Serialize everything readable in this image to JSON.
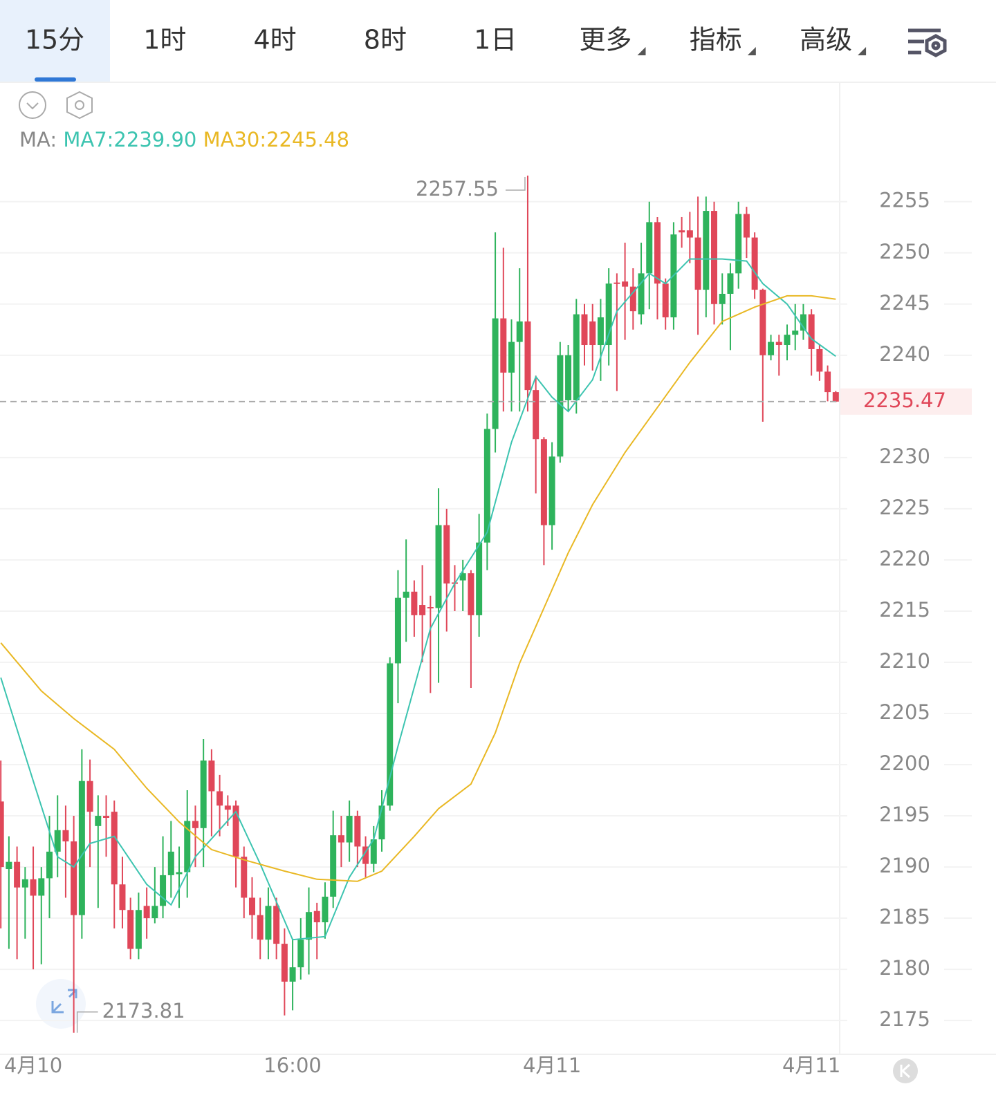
{
  "tabs": [
    "15分",
    "1时",
    "4时",
    "8时",
    "1日",
    "更多",
    "指标",
    "高级"
  ],
  "chart_data": {
    "type": "candlestick",
    "ma_prefix": "MA:",
    "up_color": "#2eb35c",
    "down_color": "#e04759",
    "xlim": [
      -0.1,
      103.4
    ],
    "ylim": [
      2171.7,
      2266.6
    ],
    "yticks": [
      2175,
      2180,
      2185,
      2190,
      2195,
      2200,
      2205,
      2210,
      2215,
      2220,
      2225,
      2230,
      2240,
      2245,
      2250,
      2255
    ],
    "xticks": [
      {
        "value": 4,
        "label": "4月10"
      },
      {
        "value": 36,
        "label": "16:00"
      },
      {
        "value": 68,
        "label": "4月11"
      },
      {
        "value": 100,
        "label": "4月11"
      }
    ],
    "high_label": "2257.55",
    "low_label": "2173.81",
    "last_price_label": "2235.47",
    "open": [
      2196.4,
      2189.8,
      2190.5,
      2188,
      2188.8,
      2187.2,
      2188.9,
      2191.5,
      2193.6,
      2192.5,
      2185.3,
      2198.4,
      2194,
      2195,
      2195.4,
      2188.3,
      2185.8,
      2182,
      2186.2,
      2185,
      2186.2,
      2189.2,
      2189.3,
      2189.5,
      2194.5,
      2193.8,
      2200.4,
      2197.4,
      2196,
      2196,
      2191,
      2187,
      2185.3,
      2182.9,
      2186.2,
      2182.5,
      2178.8,
      2180.2,
      2182.9,
      2185.7,
      2184.6,
      2187.1,
      2193.1,
      2192.4,
      2195,
      2192,
      2190.3,
      2192.7,
      2196,
      2209.9,
      2216.3,
      2216.9,
      2215.6,
      2215.4,
      2215.3,
      2223.4,
      2217.8,
      2218,
      2218.7,
      2214.6,
      2221.7,
      2232.8,
      2243.6,
      2238.3,
      2241.3,
      2243.3,
      2236.6,
      2231.8,
      2223.4,
      2230.1,
      2235.6,
      2235.6,
      2244,
      2243.3,
      2241,
      2241,
      2247.1,
      2247.2,
      2246.7,
      2244,
      2248,
      2253,
      2247,
      2243.7,
      2252.2,
      2252.2,
      2251.5,
      2246.4,
      2254.1,
      2245,
      2246,
      2248,
      2253.8,
      2251.5,
      2246.4,
      2240,
      2241.3,
      2241,
      2242,
      2242.4,
      2244,
      2240.6,
      2238.4,
      2236.4
    ],
    "high": [
      2200.4,
      2193,
      2192,
      2190,
      2192,
      2190,
      2195,
      2197,
      2196,
      2195,
      2201.5,
      2200.5,
      2197,
      2197,
      2196.5,
      2191,
      2187,
      2187.5,
      2188,
      2190,
      2193,
      2194.5,
      2192,
      2197.5,
      2196,
      2202.5,
      2201.5,
      2199,
      2197,
      2196.5,
      2192,
      2189,
      2187,
      2188,
      2187,
      2184,
      2183,
      2185,
      2188,
      2186.5,
      2188.5,
      2195.5,
      2195,
      2196.5,
      2195.5,
      2193,
      2194,
      2197.5,
      2210.5,
      2219,
      2222,
      2218,
      2219.5,
      2216.5,
      2227,
      2225,
      2219.5,
      2220,
      2219,
      2224.5,
      2234.3,
      2252,
      2250.5,
      2243.5,
      2248.5,
      2257.55,
      2238,
      2232,
      2231.5,
      2241.3,
      2241,
      2245.5,
      2245,
      2245,
      2245.5,
      2248.5,
      2248,
      2251,
      2248.5,
      2251,
      2255,
      2253.5,
      2247.5,
      2253,
      2253.5,
      2254,
      2255.5,
      2255.5,
      2255,
      2248,
      2249,
      2255,
      2254.5,
      2252,
      2246.5,
      2242,
      2242,
      2243,
      2245,
      2245,
      2244.5,
      2241,
      2239,
      2236.5
    ],
    "low": [
      2184,
      2182,
      2181,
      2183,
      2180,
      2180.5,
      2185,
      2189,
      2187,
      2173.81,
      2183,
      2190,
      2186,
      2191,
      2184,
      2184,
      2181,
      2181,
      2183,
      2184.5,
      2185,
      2187,
      2186,
      2187,
      2190,
      2190,
      2193,
      2193,
      2194,
      2188,
      2185,
      2183,
      2181,
      2181,
      2181,
      2175.5,
      2176,
      2179,
      2179.5,
      2181,
      2183,
      2186,
      2190,
      2190.5,
      2190,
      2189,
      2189.5,
      2191.5,
      2195.5,
      2206,
      2212,
      2212.5,
      2210,
      2207,
      2208,
      2213,
      2215,
      2215,
      2207.5,
      2212.5,
      2219,
      2230.5,
      2234.5,
      2234.5,
      2234.5,
      2234.5,
      2226.5,
      2219.5,
      2221,
      2229.5,
      2234.5,
      2234.3,
      2239,
      2238.5,
      2237.5,
      2239,
      2236.5,
      2241.5,
      2242.5,
      2243,
      2244.5,
      2243.5,
      2242.5,
      2242.5,
      2250.5,
      2249,
      2242,
      2243.7,
      2243,
      2243,
      2240.5,
      2246.5,
      2249.5,
      2245.5,
      2233.5,
      2239.5,
      2238,
      2239.5,
      2240.5,
      2241.5,
      2238,
      2237.5,
      2235.5,
      2235.4
    ],
    "close": [
      2190,
      2190.5,
      2188,
      2188.8,
      2187.2,
      2188.9,
      2191.5,
      2193.6,
      2192.5,
      2185.3,
      2198.4,
      2195.4,
      2195,
      2194.8,
      2188.3,
      2185.8,
      2182,
      2185.8,
      2185,
      2186.2,
      2189.2,
      2191.5,
      2189.5,
      2194.5,
      2193.8,
      2200.4,
      2197.4,
      2196,
      2195.6,
      2191,
      2187,
      2185.3,
      2182.9,
      2186.2,
      2182.5,
      2178.8,
      2180.2,
      2182.9,
      2185.6,
      2184.6,
      2187.1,
      2193.1,
      2192.4,
      2195,
      2192,
      2190.3,
      2192.7,
      2196,
      2209.9,
      2216.3,
      2216.9,
      2214.6,
      2214.6,
      2215.3,
      2223.4,
      2217.7,
      2217.7,
      2218.7,
      2214.6,
      2221.7,
      2232.8,
      2243.6,
      2238.3,
      2241.3,
      2243.3,
      2236.6,
      2231.8,
      2223.4,
      2230.1,
      2240,
      2240,
      2244,
      2241,
      2241,
      2243.7,
      2247,
      2247,
      2246.7,
      2244.3,
      2248,
      2253,
      2247,
      2243.7,
      2251.8,
      2252,
      2251.5,
      2246.4,
      2254.1,
      2245,
      2246,
      2248,
      2253.8,
      2251.5,
      2246.4,
      2240,
      2241.3,
      2241,
      2242,
      2242.4,
      2244,
      2240.6,
      2238.4,
      2236.4,
      2235.47
    ],
    "lines": [
      {
        "name": "MA7:2239.90",
        "color": "#3cc4b0",
        "x": [
          0,
          4,
          7,
          9,
          11,
          14,
          18,
          21,
          24,
          29,
          32,
          36,
          40,
          43,
          46,
          49,
          53,
          56,
          60,
          63,
          66,
          68,
          70,
          73,
          76,
          80,
          82,
          85,
          89,
          92,
          94,
          97,
          100,
          103
        ],
        "values": [
          2208.5,
          2198.4,
          2191,
          2190,
          2192.3,
          2193,
          2188.3,
          2186.3,
          2191,
          2195.4,
          2190.3,
          2182.9,
          2183.2,
          2189,
          2192.7,
          2201.8,
          2213.3,
          2217.7,
          2222.7,
          2231.5,
          2237.9,
          2235.9,
          2234.5,
          2237.6,
          2244.3,
          2248,
          2247,
          2249.4,
          2249.4,
          2249.2,
          2247,
          2245,
          2241.6,
          2239.9
        ]
      },
      {
        "name": "MA30:2245.48",
        "color": "#e9b824",
        "x": [
          0,
          5,
          9,
          14,
          18,
          22,
          26,
          30,
          35,
          39,
          44,
          47,
          51,
          54,
          58,
          61,
          64,
          67,
          70,
          73,
          77,
          81,
          85,
          89,
          93,
          97,
          100,
          103
        ],
        "values": [
          2211.9,
          2207.2,
          2204.5,
          2201.5,
          2197.7,
          2194.4,
          2191.7,
          2190.7,
          2189.6,
          2188.8,
          2188.6,
          2189.6,
          2193,
          2195.7,
          2198.1,
          2203.1,
          2209.9,
          2215.3,
          2220.7,
          2225.4,
          2230.5,
          2234.9,
          2239.3,
          2243.3,
          2244.7,
          2245.8,
          2245.8,
          2245.48
        ]
      }
    ]
  }
}
